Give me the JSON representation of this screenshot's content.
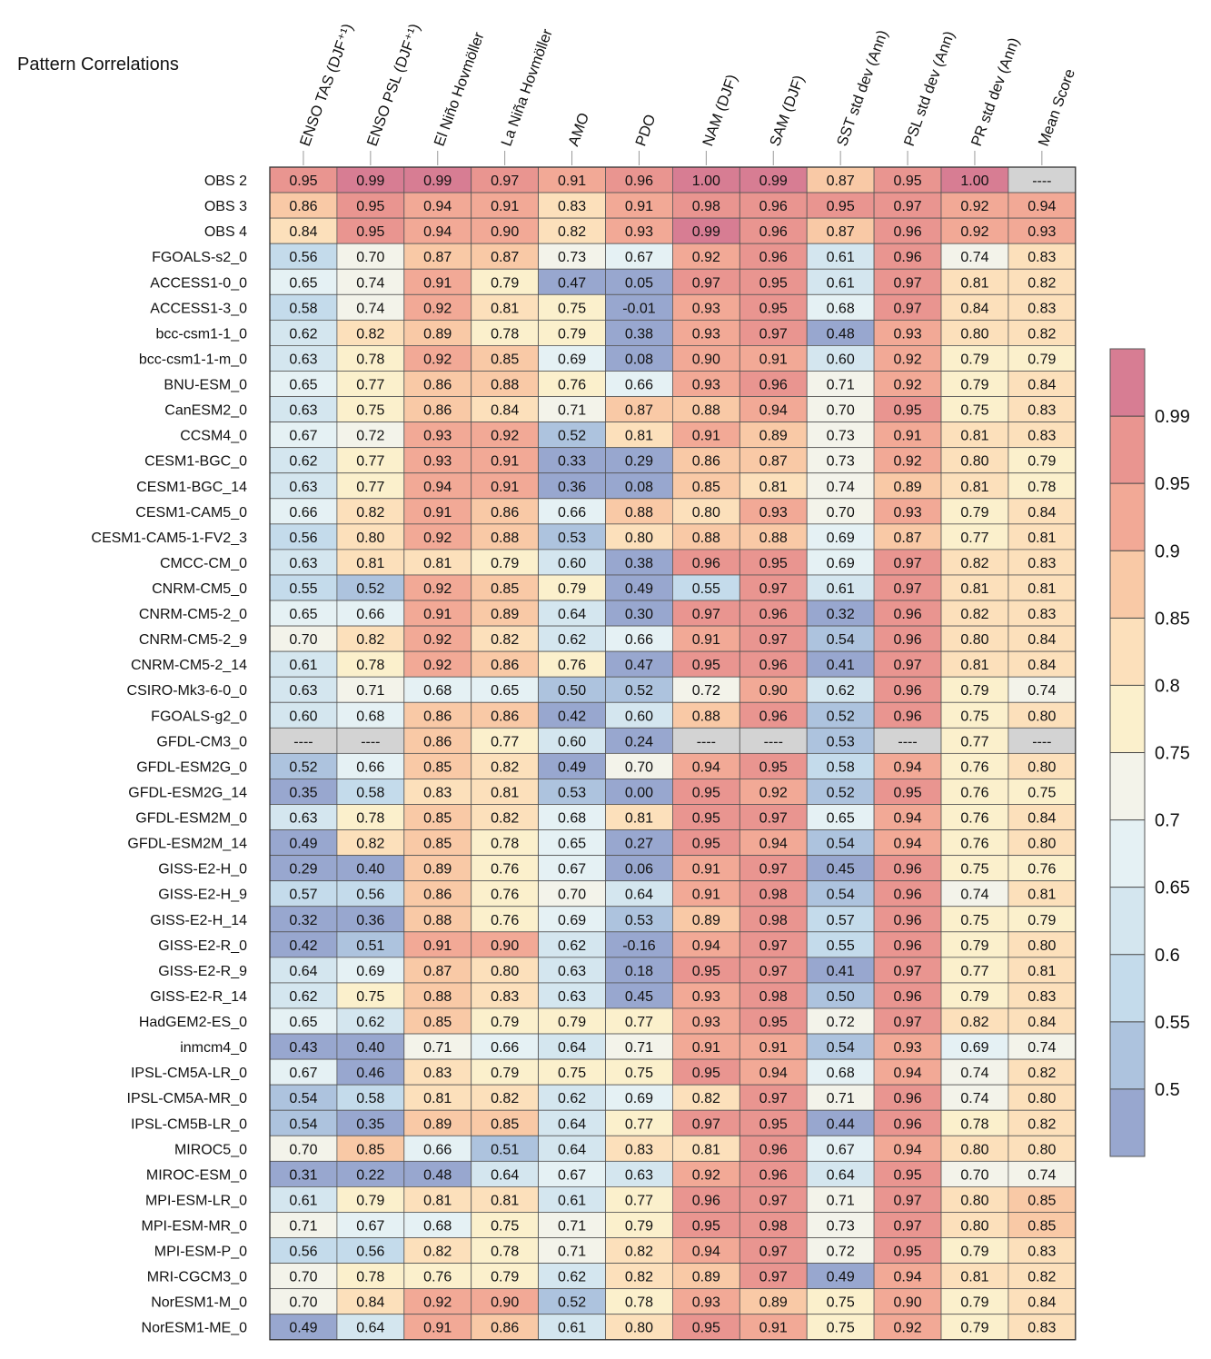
{
  "chart_data": {
    "type": "heatmap",
    "title": "Pattern Correlations",
    "columns": [
      "ENSO TAS (DJF⁺¹)",
      "ENSO PSL (DJF⁺¹)",
      "El Niño Hovmöller",
      "La Niña Hovmöller",
      "AMO",
      "PDO",
      "NAM (DJF)",
      "SAM (DJF)",
      "SST std dev (Ann)",
      "PSL std dev (Ann)",
      "PR std dev (Ann)",
      "Mean Score"
    ],
    "rows": [
      {
        "label": "OBS 2",
        "values": [
          "0.95",
          "0.99",
          "0.99",
          "0.97",
          "0.91",
          "0.96",
          "1.00",
          "0.99",
          "0.87",
          "0.95",
          "1.00",
          "----"
        ]
      },
      {
        "label": "OBS 3",
        "values": [
          "0.86",
          "0.95",
          "0.94",
          "0.91",
          "0.83",
          "0.91",
          "0.98",
          "0.96",
          "0.95",
          "0.97",
          "0.92",
          "0.94"
        ]
      },
      {
        "label": "OBS 4",
        "values": [
          "0.84",
          "0.95",
          "0.94",
          "0.90",
          "0.82",
          "0.93",
          "0.99",
          "0.96",
          "0.87",
          "0.96",
          "0.92",
          "0.93"
        ]
      },
      {
        "label": "FGOALS-s2_0",
        "values": [
          "0.56",
          "0.70",
          "0.87",
          "0.87",
          "0.73",
          "0.67",
          "0.92",
          "0.96",
          "0.61",
          "0.96",
          "0.74",
          "0.83"
        ]
      },
      {
        "label": "ACCESS1-0_0",
        "values": [
          "0.65",
          "0.74",
          "0.91",
          "0.79",
          "0.47",
          "0.05",
          "0.97",
          "0.95",
          "0.61",
          "0.97",
          "0.81",
          "0.82"
        ]
      },
      {
        "label": "ACCESS1-3_0",
        "values": [
          "0.58",
          "0.74",
          "0.92",
          "0.81",
          "0.75",
          "-0.01",
          "0.93",
          "0.95",
          "0.68",
          "0.97",
          "0.84",
          "0.83"
        ]
      },
      {
        "label": "bcc-csm1-1_0",
        "values": [
          "0.62",
          "0.82",
          "0.89",
          "0.78",
          "0.79",
          "0.38",
          "0.93",
          "0.97",
          "0.48",
          "0.93",
          "0.80",
          "0.82"
        ]
      },
      {
        "label": "bcc-csm1-1-m_0",
        "values": [
          "0.63",
          "0.78",
          "0.92",
          "0.85",
          "0.69",
          "0.08",
          "0.90",
          "0.91",
          "0.60",
          "0.92",
          "0.79",
          "0.79"
        ]
      },
      {
        "label": "BNU-ESM_0",
        "values": [
          "0.65",
          "0.77",
          "0.86",
          "0.88",
          "0.76",
          "0.66",
          "0.93",
          "0.96",
          "0.71",
          "0.92",
          "0.79",
          "0.84"
        ]
      },
      {
        "label": "CanESM2_0",
        "values": [
          "0.63",
          "0.75",
          "0.86",
          "0.84",
          "0.71",
          "0.87",
          "0.88",
          "0.94",
          "0.70",
          "0.95",
          "0.75",
          "0.83"
        ]
      },
      {
        "label": "CCSM4_0",
        "values": [
          "0.67",
          "0.72",
          "0.93",
          "0.92",
          "0.52",
          "0.81",
          "0.91",
          "0.89",
          "0.73",
          "0.91",
          "0.81",
          "0.83"
        ]
      },
      {
        "label": "CESM1-BGC_0",
        "values": [
          "0.62",
          "0.77",
          "0.93",
          "0.91",
          "0.33",
          "0.29",
          "0.86",
          "0.87",
          "0.73",
          "0.92",
          "0.80",
          "0.79"
        ]
      },
      {
        "label": "CESM1-BGC_14",
        "values": [
          "0.63",
          "0.77",
          "0.94",
          "0.91",
          "0.36",
          "0.08",
          "0.85",
          "0.81",
          "0.74",
          "0.89",
          "0.81",
          "0.78"
        ]
      },
      {
        "label": "CESM1-CAM5_0",
        "values": [
          "0.66",
          "0.82",
          "0.91",
          "0.86",
          "0.66",
          "0.88",
          "0.80",
          "0.93",
          "0.70",
          "0.93",
          "0.79",
          "0.84"
        ]
      },
      {
        "label": "CESM1-CAM5-1-FV2_3",
        "values": [
          "0.56",
          "0.80",
          "0.92",
          "0.88",
          "0.53",
          "0.80",
          "0.88",
          "0.88",
          "0.69",
          "0.87",
          "0.77",
          "0.81"
        ]
      },
      {
        "label": "CMCC-CM_0",
        "values": [
          "0.63",
          "0.81",
          "0.81",
          "0.79",
          "0.60",
          "0.38",
          "0.96",
          "0.95",
          "0.69",
          "0.97",
          "0.82",
          "0.83"
        ]
      },
      {
        "label": "CNRM-CM5_0",
        "values": [
          "0.55",
          "0.52",
          "0.92",
          "0.85",
          "0.79",
          "0.49",
          "0.55",
          "0.97",
          "0.61",
          "0.97",
          "0.81",
          "0.81"
        ]
      },
      {
        "label": "CNRM-CM5-2_0",
        "values": [
          "0.65",
          "0.66",
          "0.91",
          "0.89",
          "0.64",
          "0.30",
          "0.97",
          "0.96",
          "0.32",
          "0.96",
          "0.82",
          "0.83"
        ]
      },
      {
        "label": "CNRM-CM5-2_9",
        "values": [
          "0.70",
          "0.82",
          "0.92",
          "0.82",
          "0.62",
          "0.66",
          "0.91",
          "0.97",
          "0.54",
          "0.96",
          "0.80",
          "0.84"
        ]
      },
      {
        "label": "CNRM-CM5-2_14",
        "values": [
          "0.61",
          "0.78",
          "0.92",
          "0.86",
          "0.76",
          "0.47",
          "0.95",
          "0.96",
          "0.41",
          "0.97",
          "0.81",
          "0.84"
        ]
      },
      {
        "label": "CSIRO-Mk3-6-0_0",
        "values": [
          "0.63",
          "0.71",
          "0.68",
          "0.65",
          "0.50",
          "0.52",
          "0.72",
          "0.90",
          "0.62",
          "0.96",
          "0.79",
          "0.74"
        ]
      },
      {
        "label": "FGOALS-g2_0",
        "values": [
          "0.60",
          "0.68",
          "0.86",
          "0.86",
          "0.42",
          "0.60",
          "0.88",
          "0.96",
          "0.52",
          "0.96",
          "0.75",
          "0.80"
        ]
      },
      {
        "label": "GFDL-CM3_0",
        "values": [
          "----",
          "----",
          "0.86",
          "0.77",
          "0.60",
          "0.24",
          "----",
          "----",
          "0.53",
          "----",
          "0.77",
          "----"
        ]
      },
      {
        "label": "GFDL-ESM2G_0",
        "values": [
          "0.52",
          "0.66",
          "0.85",
          "0.82",
          "0.49",
          "0.70",
          "0.94",
          "0.95",
          "0.58",
          "0.94",
          "0.76",
          "0.80"
        ]
      },
      {
        "label": "GFDL-ESM2G_14",
        "values": [
          "0.35",
          "0.58",
          "0.83",
          "0.81",
          "0.53",
          "0.00",
          "0.95",
          "0.92",
          "0.52",
          "0.95",
          "0.76",
          "0.75"
        ]
      },
      {
        "label": "GFDL-ESM2M_0",
        "values": [
          "0.63",
          "0.78",
          "0.85",
          "0.82",
          "0.68",
          "0.81",
          "0.95",
          "0.97",
          "0.65",
          "0.94",
          "0.76",
          "0.84"
        ]
      },
      {
        "label": "GFDL-ESM2M_14",
        "values": [
          "0.49",
          "0.82",
          "0.85",
          "0.78",
          "0.65",
          "0.27",
          "0.95",
          "0.94",
          "0.54",
          "0.94",
          "0.76",
          "0.80"
        ]
      },
      {
        "label": "GISS-E2-H_0",
        "values": [
          "0.29",
          "0.40",
          "0.89",
          "0.76",
          "0.67",
          "0.06",
          "0.91",
          "0.97",
          "0.45",
          "0.96",
          "0.75",
          "0.76"
        ]
      },
      {
        "label": "GISS-E2-H_9",
        "values": [
          "0.57",
          "0.56",
          "0.86",
          "0.76",
          "0.70",
          "0.64",
          "0.91",
          "0.98",
          "0.54",
          "0.96",
          "0.74",
          "0.81"
        ]
      },
      {
        "label": "GISS-E2-H_14",
        "values": [
          "0.32",
          "0.36",
          "0.88",
          "0.76",
          "0.69",
          "0.53",
          "0.89",
          "0.98",
          "0.57",
          "0.96",
          "0.75",
          "0.79"
        ]
      },
      {
        "label": "GISS-E2-R_0",
        "values": [
          "0.42",
          "0.51",
          "0.91",
          "0.90",
          "0.62",
          "-0.16",
          "0.94",
          "0.97",
          "0.55",
          "0.96",
          "0.79",
          "0.80"
        ]
      },
      {
        "label": "GISS-E2-R_9",
        "values": [
          "0.64",
          "0.69",
          "0.87",
          "0.80",
          "0.63",
          "0.18",
          "0.95",
          "0.97",
          "0.41",
          "0.97",
          "0.77",
          "0.81"
        ]
      },
      {
        "label": "GISS-E2-R_14",
        "values": [
          "0.62",
          "0.75",
          "0.88",
          "0.83",
          "0.63",
          "0.45",
          "0.93",
          "0.98",
          "0.50",
          "0.96",
          "0.79",
          "0.83"
        ]
      },
      {
        "label": "HadGEM2-ES_0",
        "values": [
          "0.65",
          "0.62",
          "0.85",
          "0.79",
          "0.79",
          "0.77",
          "0.93",
          "0.95",
          "0.72",
          "0.97",
          "0.82",
          "0.84"
        ]
      },
      {
        "label": "inmcm4_0",
        "values": [
          "0.43",
          "0.40",
          "0.71",
          "0.66",
          "0.64",
          "0.71",
          "0.91",
          "0.91",
          "0.54",
          "0.93",
          "0.69",
          "0.74"
        ]
      },
      {
        "label": "IPSL-CM5A-LR_0",
        "values": [
          "0.67",
          "0.46",
          "0.83",
          "0.79",
          "0.75",
          "0.75",
          "0.95",
          "0.94",
          "0.68",
          "0.94",
          "0.74",
          "0.82"
        ]
      },
      {
        "label": "IPSL-CM5A-MR_0",
        "values": [
          "0.54",
          "0.58",
          "0.81",
          "0.82",
          "0.62",
          "0.69",
          "0.82",
          "0.97",
          "0.71",
          "0.96",
          "0.74",
          "0.80"
        ]
      },
      {
        "label": "IPSL-CM5B-LR_0",
        "values": [
          "0.54",
          "0.35",
          "0.89",
          "0.85",
          "0.64",
          "0.77",
          "0.97",
          "0.95",
          "0.44",
          "0.96",
          "0.78",
          "0.82"
        ]
      },
      {
        "label": "MIROC5_0",
        "values": [
          "0.70",
          "0.85",
          "0.66",
          "0.51",
          "0.64",
          "0.83",
          "0.81",
          "0.96",
          "0.67",
          "0.94",
          "0.80",
          "0.80"
        ]
      },
      {
        "label": "MIROC-ESM_0",
        "values": [
          "0.31",
          "0.22",
          "0.48",
          "0.64",
          "0.67",
          "0.63",
          "0.92",
          "0.96",
          "0.64",
          "0.95",
          "0.70",
          "0.74"
        ]
      },
      {
        "label": "MPI-ESM-LR_0",
        "values": [
          "0.61",
          "0.79",
          "0.81",
          "0.81",
          "0.61",
          "0.77",
          "0.96",
          "0.97",
          "0.71",
          "0.97",
          "0.80",
          "0.85"
        ]
      },
      {
        "label": "MPI-ESM-MR_0",
        "values": [
          "0.71",
          "0.67",
          "0.68",
          "0.75",
          "0.71",
          "0.79",
          "0.95",
          "0.98",
          "0.73",
          "0.97",
          "0.80",
          "0.85"
        ]
      },
      {
        "label": "MPI-ESM-P_0",
        "values": [
          "0.56",
          "0.56",
          "0.82",
          "0.78",
          "0.71",
          "0.82",
          "0.94",
          "0.97",
          "0.72",
          "0.95",
          "0.79",
          "0.83"
        ]
      },
      {
        "label": "MRI-CGCM3_0",
        "values": [
          "0.70",
          "0.78",
          "0.76",
          "0.79",
          "0.62",
          "0.82",
          "0.89",
          "0.97",
          "0.49",
          "0.94",
          "0.81",
          "0.82"
        ]
      },
      {
        "label": "NorESM1-M_0",
        "values": [
          "0.70",
          "0.84",
          "0.92",
          "0.90",
          "0.52",
          "0.78",
          "0.93",
          "0.89",
          "0.75",
          "0.90",
          "0.79",
          "0.84"
        ]
      },
      {
        "label": "NorESM1-ME_0",
        "values": [
          "0.49",
          "0.64",
          "0.91",
          "0.86",
          "0.61",
          "0.80",
          "0.95",
          "0.91",
          "0.75",
          "0.92",
          "0.79",
          "0.83"
        ]
      }
    ],
    "missing_value": "----",
    "colorbar": {
      "levels": [
        0.5,
        0.55,
        0.6,
        0.65,
        0.7,
        0.75,
        0.8,
        0.85,
        0.9,
        0.95,
        0.99
      ],
      "tick_labels": [
        "0.5",
        "0.55",
        "0.6",
        "0.65",
        "0.7",
        "0.75",
        "0.8",
        "0.85",
        "0.9",
        "0.95",
        "0.99"
      ],
      "colors": [
        "#98a7cf",
        "#adc3de",
        "#c4dbeb",
        "#d4e6ef",
        "#e5f1f4",
        "#f3f3ea",
        "#fbf0cc",
        "#fce0bb",
        "#f9c9a6",
        "#f2a996",
        "#e99590",
        "#d77d93"
      ],
      "missing_color": "#d3d3d3"
    }
  }
}
